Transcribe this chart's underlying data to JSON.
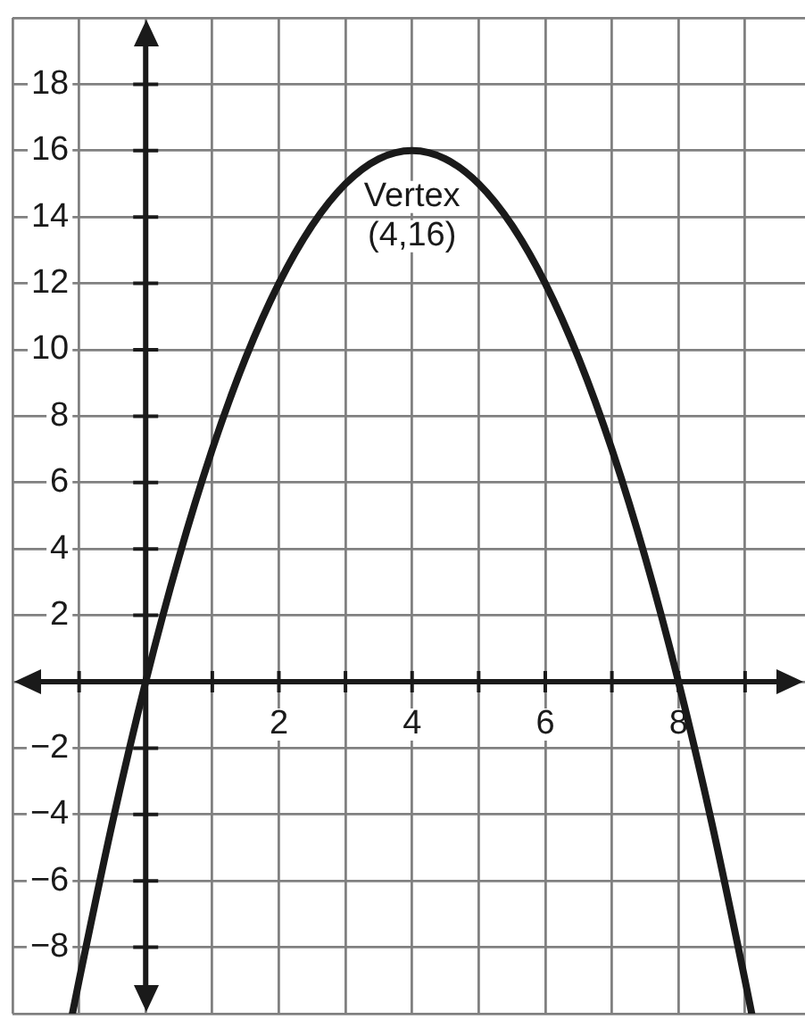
{
  "chart_data": {
    "type": "line",
    "x": [
      -1.1,
      -1,
      -0.5,
      0,
      0.5,
      1,
      1.5,
      2,
      2.5,
      3,
      3.5,
      4,
      4.5,
      5,
      5.5,
      6,
      6.5,
      7,
      7.5,
      8,
      8.5,
      9,
      9.1
    ],
    "series": [
      {
        "color": "#1a1a1a",
        "values": [
          -10,
          -9,
          -4.25,
          0,
          3.75,
          7,
          9.75,
          12,
          13.75,
          15,
          15.75,
          16,
          15.75,
          15,
          13.75,
          12,
          9.75,
          7,
          3.75,
          0,
          -4.25,
          -9,
          -10
        ]
      }
    ],
    "xlim": [
      -2,
      9.9
    ],
    "ylim": [
      -10,
      20
    ],
    "xticks": [
      {
        "value": -2,
        "label": null
      },
      {
        "value": -1,
        "label": null
      },
      {
        "value": 0,
        "label": null
      },
      {
        "value": 1,
        "label": null
      },
      2,
      {
        "value": 3,
        "label": null
      },
      4,
      {
        "value": 5,
        "label": null
      },
      6,
      {
        "value": 7,
        "label": null
      },
      8,
      {
        "value": 9,
        "label": null
      }
    ],
    "yticks": [
      {
        "value": -10,
        "label": null
      },
      {
        "value": -8,
        "label": "−8"
      },
      {
        "value": -6,
        "label": "−6"
      },
      {
        "value": -4,
        "label": "−4"
      },
      {
        "value": -2,
        "label": "−2"
      },
      {
        "value": 0,
        "label": null
      },
      2,
      4,
      6,
      8,
      10,
      12,
      14,
      16,
      18,
      {
        "value": 20,
        "label": null
      }
    ],
    "grid": true,
    "legend": false,
    "marker": "none",
    "line_style": "solid",
    "annotations": [
      {
        "text": "Vertex\n(4,16)",
        "x": 4,
        "y": 16
      }
    ]
  }
}
